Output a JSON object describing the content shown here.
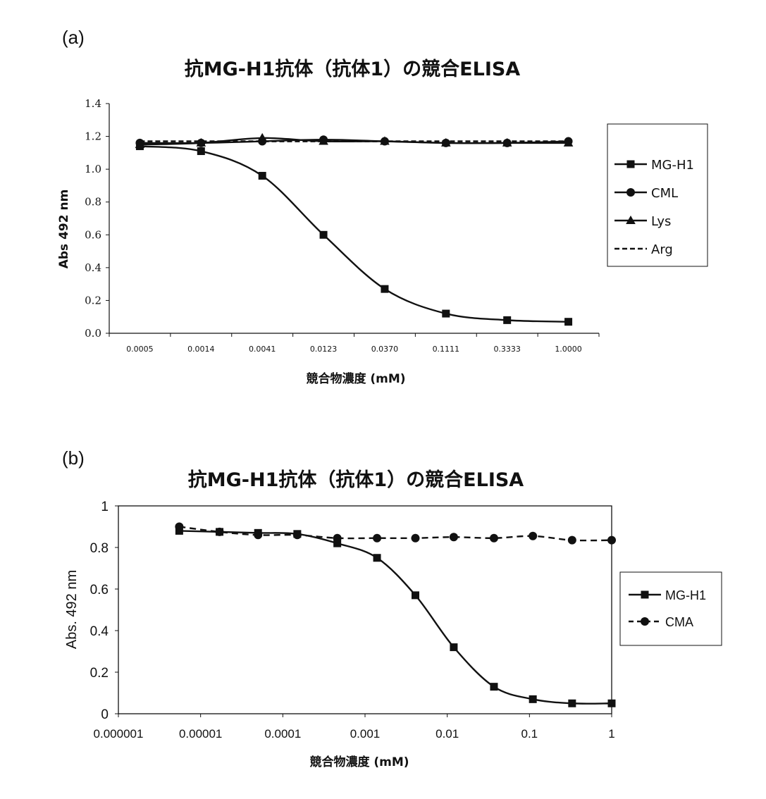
{
  "chart_data": [
    {
      "panel_label": "(a)",
      "type": "line",
      "title": "抗MG-H1抗体（抗体1）の競合ELISA",
      "xlabel": "競合物濃度 (mM)",
      "ylabel": "Abs 492 nm",
      "x_scale": "category",
      "categories": [
        "0.0005",
        "0.0014",
        "0.0041",
        "0.0123",
        "0.0370",
        "0.1111",
        "0.3333",
        "1.0000"
      ],
      "ylim": [
        0,
        1.4
      ],
      "yticks": [
        "0.0",
        "0.2",
        "0.4",
        "0.6",
        "0.8",
        "1.0",
        "1.2",
        "1.4"
      ],
      "yticks_values": [
        0,
        0.2,
        0.4,
        0.6,
        0.8,
        1.0,
        1.2,
        1.4
      ],
      "grid": false,
      "legend_position": "right",
      "series": [
        {
          "name": "MG-H1",
          "marker": "square",
          "dash": false,
          "values": [
            1.14,
            1.11,
            0.96,
            0.6,
            0.27,
            0.12,
            0.08,
            0.07
          ]
        },
        {
          "name": "CML",
          "marker": "circle",
          "dash": false,
          "values": [
            1.16,
            1.16,
            1.17,
            1.18,
            1.17,
            1.16,
            1.16,
            1.17
          ]
        },
        {
          "name": "Lys",
          "marker": "triangle",
          "dash": false,
          "values": [
            1.15,
            1.16,
            1.19,
            1.17,
            1.17,
            1.16,
            1.16,
            1.16
          ]
        },
        {
          "name": "Arg",
          "marker": "none",
          "dash": true,
          "values": [
            1.17,
            1.17,
            1.17,
            1.17,
            1.17,
            1.17,
            1.17,
            1.17
          ]
        }
      ]
    },
    {
      "panel_label": "(b)",
      "type": "line",
      "title": "抗MG-H1抗体（抗体1）の競合ELISA",
      "xlabel": "競合物濃度 (mM)",
      "ylabel": "Abs. 492 nm",
      "x_scale": "log",
      "xlim": [
        1e-06,
        1
      ],
      "xticks": [
        "0.000001",
        "0.00001",
        "0.0001",
        "0.001",
        "0.01",
        "0.1",
        "1"
      ],
      "xticks_values": [
        1e-06,
        1e-05,
        0.0001,
        0.001,
        0.01,
        0.1,
        1
      ],
      "ylim": [
        0,
        1
      ],
      "yticks": [
        "0",
        "0.2",
        "0.4",
        "0.6",
        "0.8",
        "1"
      ],
      "yticks_values": [
        0,
        0.2,
        0.4,
        0.6,
        0.8,
        1
      ],
      "grid": false,
      "legend_position": "right",
      "series": [
        {
          "name": "MG-H1",
          "marker": "square",
          "dash": false,
          "x": [
            5.5e-06,
            1.7e-05,
            5e-05,
            0.00015,
            0.00046,
            0.0014,
            0.0041,
            0.012,
            0.037,
            0.11,
            0.33,
            1.0
          ],
          "values": [
            0.88,
            0.875,
            0.87,
            0.865,
            0.82,
            0.75,
            0.57,
            0.32,
            0.13,
            0.07,
            0.05,
            0.05
          ]
        },
        {
          "name": "CMA",
          "marker": "circle",
          "dash": true,
          "x": [
            5.5e-06,
            1.7e-05,
            5e-05,
            0.00015,
            0.00046,
            0.0014,
            0.0041,
            0.012,
            0.037,
            0.11,
            0.33,
            1.0
          ],
          "values": [
            0.9,
            0.875,
            0.86,
            0.86,
            0.845,
            0.845,
            0.845,
            0.85,
            0.845,
            0.855,
            0.835,
            0.835
          ]
        }
      ]
    }
  ]
}
